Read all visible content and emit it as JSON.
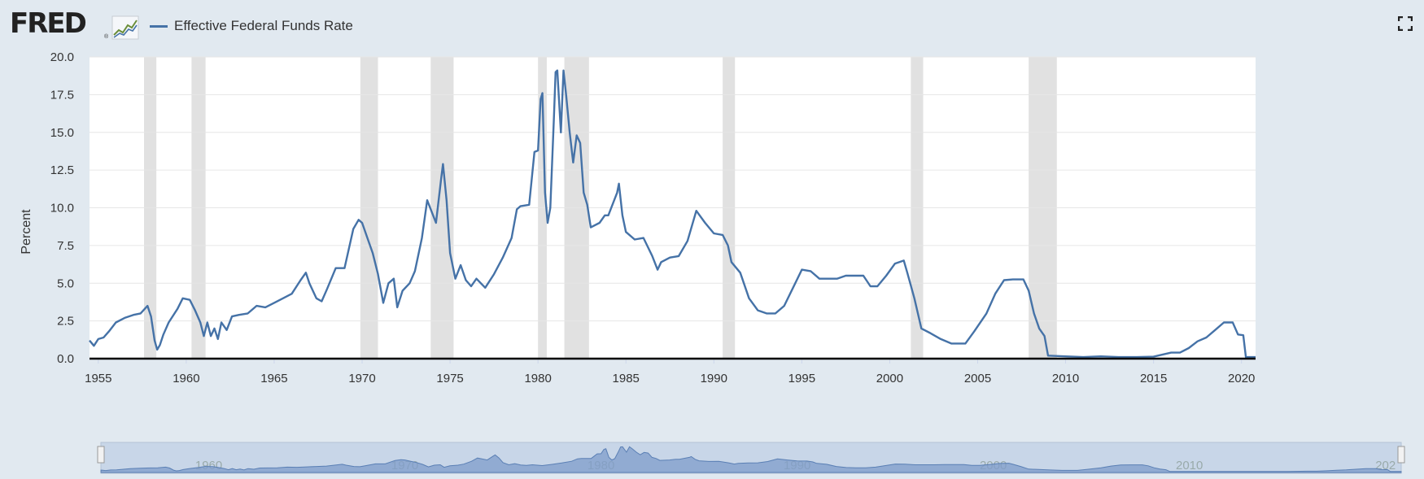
{
  "header": {
    "logo_text": "FRED",
    "logo_reg": "®",
    "legend_label": "Effective Federal Funds Rate",
    "fullscreen_icon": "fullscreen-icon"
  },
  "colors": {
    "series": "#4572a7",
    "recession": "#e1e1e1",
    "background": "#e1e9f0",
    "plot_bg": "#ffffff",
    "navigator_fill": "#a9bfd8"
  },
  "chart_data": {
    "type": "line",
    "title": "",
    "xlabel": "",
    "ylabel": "Percent",
    "xlim": [
      1954.5,
      2020.8
    ],
    "ylim": [
      0,
      20
    ],
    "y_ticks": [
      "0.0",
      "2.5",
      "5.0",
      "7.5",
      "10.0",
      "12.5",
      "15.0",
      "17.5",
      "20.0"
    ],
    "x_ticks": [
      "1955",
      "1960",
      "1965",
      "1970",
      "1975",
      "1980",
      "1985",
      "1990",
      "1995",
      "2000",
      "2005",
      "2010",
      "2015",
      "2020"
    ],
    "grid": true,
    "legend_position": "top-left",
    "recessions": [
      [
        1957.6,
        1958.3
      ],
      [
        1960.3,
        1961.1
      ],
      [
        1969.9,
        1970.9
      ],
      [
        1973.9,
        1975.2
      ],
      [
        1980.0,
        1980.5
      ],
      [
        1981.5,
        1982.9
      ],
      [
        1990.5,
        1991.2
      ],
      [
        2001.2,
        2001.9
      ],
      [
        2007.9,
        2009.5
      ]
    ],
    "navigator_labels": [
      "1960",
      "1970",
      "1980",
      "1990",
      "2000",
      "2010",
      "202"
    ],
    "series": [
      {
        "name": "Effective Federal Funds Rate",
        "points": [
          [
            1954.5,
            1.2
          ],
          [
            1954.75,
            0.85
          ],
          [
            1955.0,
            1.3
          ],
          [
            1955.3,
            1.4
          ],
          [
            1955.6,
            1.8
          ],
          [
            1956.0,
            2.4
          ],
          [
            1956.5,
            2.7
          ],
          [
            1957.0,
            2.9
          ],
          [
            1957.4,
            3.0
          ],
          [
            1957.8,
            3.5
          ],
          [
            1958.0,
            2.8
          ],
          [
            1958.2,
            1.2
          ],
          [
            1958.35,
            0.6
          ],
          [
            1958.5,
            0.9
          ],
          [
            1958.7,
            1.6
          ],
          [
            1959.0,
            2.4
          ],
          [
            1959.5,
            3.3
          ],
          [
            1959.8,
            4.0
          ],
          [
            1960.2,
            3.9
          ],
          [
            1960.5,
            3.2
          ],
          [
            1960.8,
            2.4
          ],
          [
            1961.0,
            1.5
          ],
          [
            1961.2,
            2.4
          ],
          [
            1961.4,
            1.5
          ],
          [
            1961.6,
            2.0
          ],
          [
            1961.8,
            1.3
          ],
          [
            1962.0,
            2.4
          ],
          [
            1962.3,
            1.9
          ],
          [
            1962.6,
            2.8
          ],
          [
            1963.0,
            2.9
          ],
          [
            1963.5,
            3.0
          ],
          [
            1964.0,
            3.5
          ],
          [
            1964.5,
            3.4
          ],
          [
            1965.0,
            3.7
          ],
          [
            1965.5,
            4.0
          ],
          [
            1966.0,
            4.3
          ],
          [
            1966.5,
            5.2
          ],
          [
            1966.8,
            5.7
          ],
          [
            1967.0,
            5.0
          ],
          [
            1967.4,
            4.0
          ],
          [
            1967.7,
            3.8
          ],
          [
            1968.0,
            4.6
          ],
          [
            1968.5,
            6.0
          ],
          [
            1969.0,
            6.0
          ],
          [
            1969.5,
            8.6
          ],
          [
            1969.8,
            9.2
          ],
          [
            1970.0,
            9.0
          ],
          [
            1970.3,
            8.0
          ],
          [
            1970.6,
            7.0
          ],
          [
            1970.9,
            5.6
          ],
          [
            1971.2,
            3.7
          ],
          [
            1971.5,
            5.0
          ],
          [
            1971.8,
            5.3
          ],
          [
            1972.0,
            3.4
          ],
          [
            1972.3,
            4.5
          ],
          [
            1972.7,
            5.0
          ],
          [
            1973.0,
            5.8
          ],
          [
            1973.4,
            8.0
          ],
          [
            1973.7,
            10.5
          ],
          [
            1974.0,
            9.6
          ],
          [
            1974.2,
            9.0
          ],
          [
            1974.5,
            12.0
          ],
          [
            1974.6,
            12.9
          ],
          [
            1974.8,
            10.5
          ],
          [
            1975.0,
            7.0
          ],
          [
            1975.3,
            5.3
          ],
          [
            1975.6,
            6.2
          ],
          [
            1975.9,
            5.2
          ],
          [
            1976.2,
            4.8
          ],
          [
            1976.5,
            5.3
          ],
          [
            1977.0,
            4.7
          ],
          [
            1977.5,
            5.6
          ],
          [
            1978.0,
            6.7
          ],
          [
            1978.5,
            8.0
          ],
          [
            1978.8,
            9.9
          ],
          [
            1979.0,
            10.1
          ],
          [
            1979.5,
            10.2
          ],
          [
            1979.8,
            13.7
          ],
          [
            1980.0,
            13.8
          ],
          [
            1980.15,
            17.2
          ],
          [
            1980.25,
            17.6
          ],
          [
            1980.4,
            11.0
          ],
          [
            1980.55,
            9.0
          ],
          [
            1980.7,
            10.0
          ],
          [
            1980.9,
            15.8
          ],
          [
            1981.0,
            19.0
          ],
          [
            1981.1,
            19.1
          ],
          [
            1981.3,
            15.0
          ],
          [
            1981.45,
            19.1
          ],
          [
            1981.6,
            17.5
          ],
          [
            1981.8,
            15.0
          ],
          [
            1982.0,
            13.0
          ],
          [
            1982.2,
            14.8
          ],
          [
            1982.4,
            14.3
          ],
          [
            1982.6,
            11.0
          ],
          [
            1982.8,
            10.2
          ],
          [
            1983.0,
            8.7
          ],
          [
            1983.5,
            9.0
          ],
          [
            1983.8,
            9.5
          ],
          [
            1984.0,
            9.5
          ],
          [
            1984.5,
            11.0
          ],
          [
            1984.6,
            11.6
          ],
          [
            1984.8,
            9.5
          ],
          [
            1985.0,
            8.4
          ],
          [
            1985.5,
            7.9
          ],
          [
            1986.0,
            8.0
          ],
          [
            1986.5,
            6.8
          ],
          [
            1986.8,
            5.9
          ],
          [
            1987.0,
            6.4
          ],
          [
            1987.5,
            6.7
          ],
          [
            1988.0,
            6.8
          ],
          [
            1988.5,
            7.8
          ],
          [
            1989.0,
            9.8
          ],
          [
            1989.5,
            9.0
          ],
          [
            1990.0,
            8.3
          ],
          [
            1990.5,
            8.2
          ],
          [
            1990.8,
            7.5
          ],
          [
            1991.0,
            6.4
          ],
          [
            1991.5,
            5.7
          ],
          [
            1992.0,
            4.0
          ],
          [
            1992.5,
            3.2
          ],
          [
            1993.0,
            3.0
          ],
          [
            1993.5,
            3.0
          ],
          [
            1994.0,
            3.5
          ],
          [
            1994.5,
            4.7
          ],
          [
            1995.0,
            5.9
          ],
          [
            1995.5,
            5.8
          ],
          [
            1996.0,
            5.3
          ],
          [
            1996.5,
            5.3
          ],
          [
            1997.0,
            5.3
          ],
          [
            1997.5,
            5.5
          ],
          [
            1998.0,
            5.5
          ],
          [
            1998.5,
            5.5
          ],
          [
            1998.9,
            4.8
          ],
          [
            1999.3,
            4.8
          ],
          [
            1999.8,
            5.5
          ],
          [
            2000.3,
            6.3
          ],
          [
            2000.8,
            6.5
          ],
          [
            2001.0,
            5.7
          ],
          [
            2001.4,
            4.0
          ],
          [
            2001.8,
            2.0
          ],
          [
            2002.3,
            1.7
          ],
          [
            2002.9,
            1.3
          ],
          [
            2003.5,
            1.0
          ],
          [
            2004.3,
            1.0
          ],
          [
            2004.8,
            1.8
          ],
          [
            2005.5,
            3.0
          ],
          [
            2006.0,
            4.3
          ],
          [
            2006.5,
            5.2
          ],
          [
            2007.0,
            5.25
          ],
          [
            2007.6,
            5.25
          ],
          [
            2007.9,
            4.5
          ],
          [
            2008.2,
            3.0
          ],
          [
            2008.5,
            2.0
          ],
          [
            2008.8,
            1.5
          ],
          [
            2009.0,
            0.2
          ],
          [
            2010.0,
            0.15
          ],
          [
            2011.0,
            0.1
          ],
          [
            2012.0,
            0.15
          ],
          [
            2013.0,
            0.1
          ],
          [
            2014.0,
            0.1
          ],
          [
            2015.0,
            0.13
          ],
          [
            2016.0,
            0.4
          ],
          [
            2016.5,
            0.4
          ],
          [
            2017.0,
            0.7
          ],
          [
            2017.5,
            1.15
          ],
          [
            2018.0,
            1.4
          ],
          [
            2018.5,
            1.9
          ],
          [
            2019.0,
            2.4
          ],
          [
            2019.5,
            2.4
          ],
          [
            2019.8,
            1.6
          ],
          [
            2020.1,
            1.55
          ],
          [
            2020.25,
            0.1
          ],
          [
            2020.8,
            0.1
          ]
        ]
      }
    ]
  }
}
